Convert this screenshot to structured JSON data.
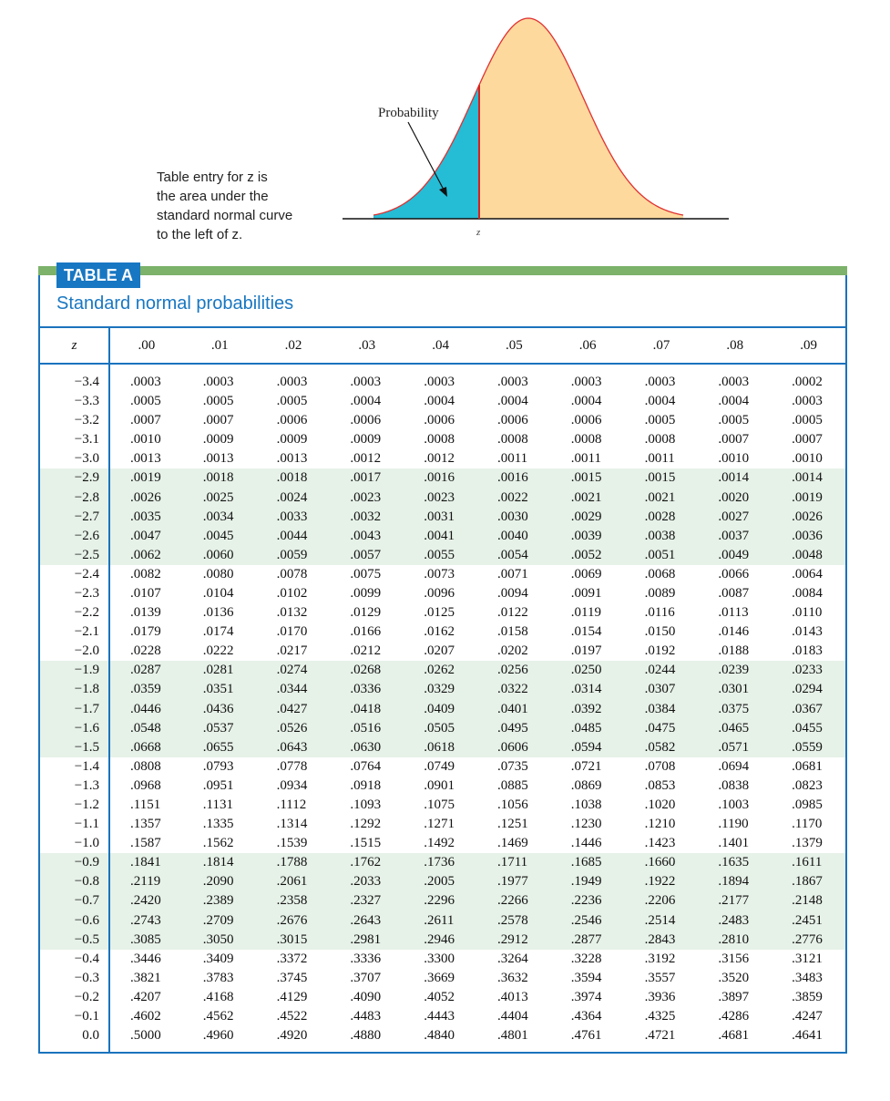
{
  "caption_lines": [
    "Table entry for z is",
    "the area under the",
    "standard normal curve",
    "to the left of z."
  ],
  "figure": {
    "probability_label": "Probability",
    "z_label": "z"
  },
  "colors": {
    "shaded_left": "#25bcd6",
    "shaded_right": "#fdd99d",
    "accent_blue": "#1a73bd",
    "green_bar": "#7cb26a",
    "row_shade": "#e6f1e8",
    "z_line": "#d42222"
  },
  "table": {
    "badge": "TABLE A",
    "subtitle": "Standard normal probabilities",
    "headers": [
      "z",
      ".00",
      ".01",
      ".02",
      ".03",
      ".04",
      ".05",
      ".06",
      ".07",
      ".08",
      ".09"
    ],
    "rows": [
      [
        "−3.4",
        ".0003",
        ".0003",
        ".0003",
        ".0003",
        ".0003",
        ".0003",
        ".0003",
        ".0003",
        ".0003",
        ".0002"
      ],
      [
        "−3.3",
        ".0005",
        ".0005",
        ".0005",
        ".0004",
        ".0004",
        ".0004",
        ".0004",
        ".0004",
        ".0004",
        ".0003"
      ],
      [
        "−3.2",
        ".0007",
        ".0007",
        ".0006",
        ".0006",
        ".0006",
        ".0006",
        ".0006",
        ".0005",
        ".0005",
        ".0005"
      ],
      [
        "−3.1",
        ".0010",
        ".0009",
        ".0009",
        ".0009",
        ".0008",
        ".0008",
        ".0008",
        ".0008",
        ".0007",
        ".0007"
      ],
      [
        "−3.0",
        ".0013",
        ".0013",
        ".0013",
        ".0012",
        ".0012",
        ".0011",
        ".0011",
        ".0011",
        ".0010",
        ".0010"
      ],
      [
        "−2.9",
        ".0019",
        ".0018",
        ".0018",
        ".0017",
        ".0016",
        ".0016",
        ".0015",
        ".0015",
        ".0014",
        ".0014"
      ],
      [
        "−2.8",
        ".0026",
        ".0025",
        ".0024",
        ".0023",
        ".0023",
        ".0022",
        ".0021",
        ".0021",
        ".0020",
        ".0019"
      ],
      [
        "−2.7",
        ".0035",
        ".0034",
        ".0033",
        ".0032",
        ".0031",
        ".0030",
        ".0029",
        ".0028",
        ".0027",
        ".0026"
      ],
      [
        "−2.6",
        ".0047",
        ".0045",
        ".0044",
        ".0043",
        ".0041",
        ".0040",
        ".0039",
        ".0038",
        ".0037",
        ".0036"
      ],
      [
        "−2.5",
        ".0062",
        ".0060",
        ".0059",
        ".0057",
        ".0055",
        ".0054",
        ".0052",
        ".0051",
        ".0049",
        ".0048"
      ],
      [
        "−2.4",
        ".0082",
        ".0080",
        ".0078",
        ".0075",
        ".0073",
        ".0071",
        ".0069",
        ".0068",
        ".0066",
        ".0064"
      ],
      [
        "−2.3",
        ".0107",
        ".0104",
        ".0102",
        ".0099",
        ".0096",
        ".0094",
        ".0091",
        ".0089",
        ".0087",
        ".0084"
      ],
      [
        "−2.2",
        ".0139",
        ".0136",
        ".0132",
        ".0129",
        ".0125",
        ".0122",
        ".0119",
        ".0116",
        ".0113",
        ".0110"
      ],
      [
        "−2.1",
        ".0179",
        ".0174",
        ".0170",
        ".0166",
        ".0162",
        ".0158",
        ".0154",
        ".0150",
        ".0146",
        ".0143"
      ],
      [
        "−2.0",
        ".0228",
        ".0222",
        ".0217",
        ".0212",
        ".0207",
        ".0202",
        ".0197",
        ".0192",
        ".0188",
        ".0183"
      ],
      [
        "−1.9",
        ".0287",
        ".0281",
        ".0274",
        ".0268",
        ".0262",
        ".0256",
        ".0250",
        ".0244",
        ".0239",
        ".0233"
      ],
      [
        "−1.8",
        ".0359",
        ".0351",
        ".0344",
        ".0336",
        ".0329",
        ".0322",
        ".0314",
        ".0307",
        ".0301",
        ".0294"
      ],
      [
        "−1.7",
        ".0446",
        ".0436",
        ".0427",
        ".0418",
        ".0409",
        ".0401",
        ".0392",
        ".0384",
        ".0375",
        ".0367"
      ],
      [
        "−1.6",
        ".0548",
        ".0537",
        ".0526",
        ".0516",
        ".0505",
        ".0495",
        ".0485",
        ".0475",
        ".0465",
        ".0455"
      ],
      [
        "−1.5",
        ".0668",
        ".0655",
        ".0643",
        ".0630",
        ".0618",
        ".0606",
        ".0594",
        ".0582",
        ".0571",
        ".0559"
      ],
      [
        "−1.4",
        ".0808",
        ".0793",
        ".0778",
        ".0764",
        ".0749",
        ".0735",
        ".0721",
        ".0708",
        ".0694",
        ".0681"
      ],
      [
        "−1.3",
        ".0968",
        ".0951",
        ".0934",
        ".0918",
        ".0901",
        ".0885",
        ".0869",
        ".0853",
        ".0838",
        ".0823"
      ],
      [
        "−1.2",
        ".1151",
        ".1131",
        ".1112",
        ".1093",
        ".1075",
        ".1056",
        ".1038",
        ".1020",
        ".1003",
        ".0985"
      ],
      [
        "−1.1",
        ".1357",
        ".1335",
        ".1314",
        ".1292",
        ".1271",
        ".1251",
        ".1230",
        ".1210",
        ".1190",
        ".1170"
      ],
      [
        "−1.0",
        ".1587",
        ".1562",
        ".1539",
        ".1515",
        ".1492",
        ".1469",
        ".1446",
        ".1423",
        ".1401",
        ".1379"
      ],
      [
        "−0.9",
        ".1841",
        ".1814",
        ".1788",
        ".1762",
        ".1736",
        ".1711",
        ".1685",
        ".1660",
        ".1635",
        ".1611"
      ],
      [
        "−0.8",
        ".2119",
        ".2090",
        ".2061",
        ".2033",
        ".2005",
        ".1977",
        ".1949",
        ".1922",
        ".1894",
        ".1867"
      ],
      [
        "−0.7",
        ".2420",
        ".2389",
        ".2358",
        ".2327",
        ".2296",
        ".2266",
        ".2236",
        ".2206",
        ".2177",
        ".2148"
      ],
      [
        "−0.6",
        ".2743",
        ".2709",
        ".2676",
        ".2643",
        ".2611",
        ".2578",
        ".2546",
        ".2514",
        ".2483",
        ".2451"
      ],
      [
        "−0.5",
        ".3085",
        ".3050",
        ".3015",
        ".2981",
        ".2946",
        ".2912",
        ".2877",
        ".2843",
        ".2810",
        ".2776"
      ],
      [
        "−0.4",
        ".3446",
        ".3409",
        ".3372",
        ".3336",
        ".3300",
        ".3264",
        ".3228",
        ".3192",
        ".3156",
        ".3121"
      ],
      [
        "−0.3",
        ".3821",
        ".3783",
        ".3745",
        ".3707",
        ".3669",
        ".3632",
        ".3594",
        ".3557",
        ".3520",
        ".3483"
      ],
      [
        "−0.2",
        ".4207",
        ".4168",
        ".4129",
        ".4090",
        ".4052",
        ".4013",
        ".3974",
        ".3936",
        ".3897",
        ".3859"
      ],
      [
        "−0.1",
        ".4602",
        ".4562",
        ".4522",
        ".4483",
        ".4443",
        ".4404",
        ".4364",
        ".4325",
        ".4286",
        ".4247"
      ],
      [
        "0.0",
        ".5000",
        ".4960",
        ".4920",
        ".4880",
        ".4840",
        ".4801",
        ".4761",
        ".4721",
        ".4681",
        ".4641"
      ]
    ]
  }
}
